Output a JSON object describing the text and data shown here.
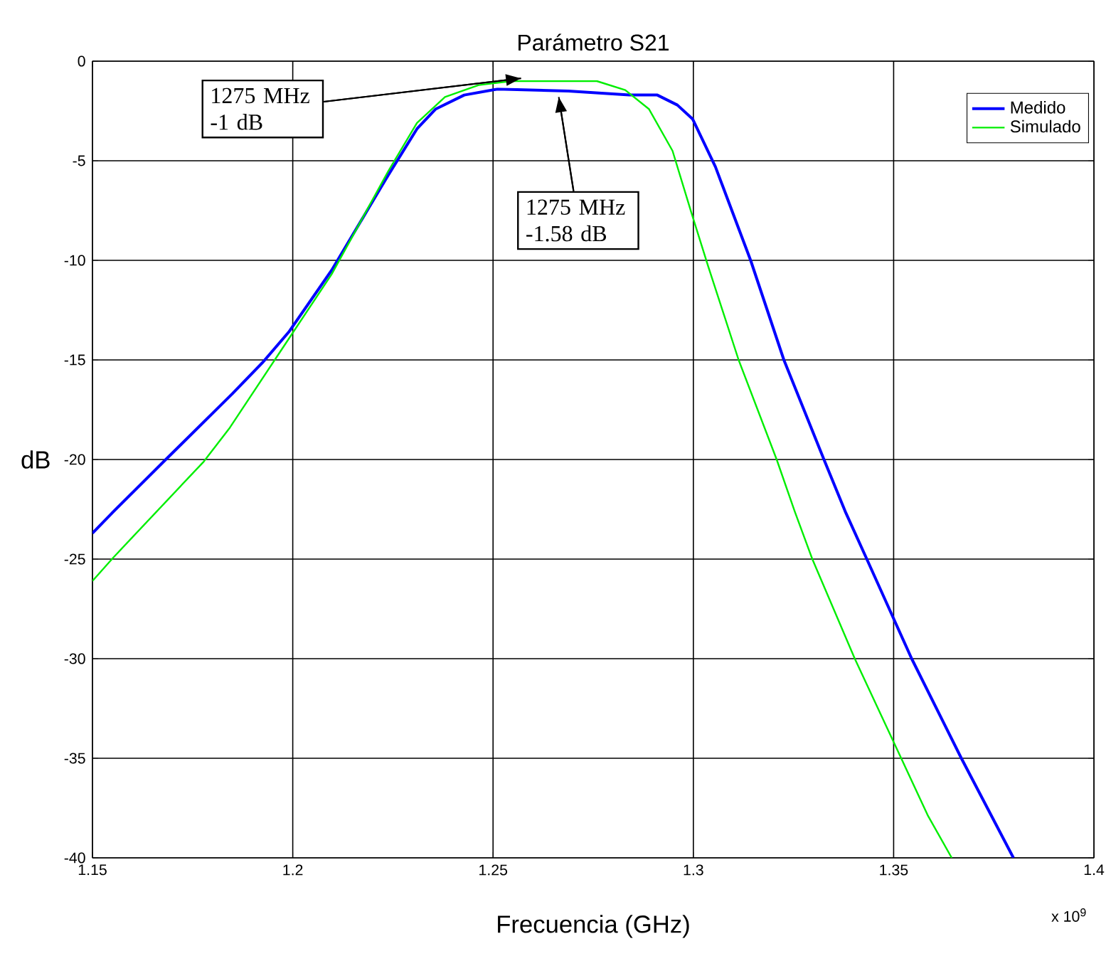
{
  "chart_data": {
    "type": "line",
    "title": "Parámetro S21",
    "xlabel": "Frecuencia (GHz)",
    "ylabel": "dB",
    "xlim": [
      1.15,
      1.4
    ],
    "ylim": [
      -40,
      0
    ],
    "xticks": [
      1.15,
      1.2,
      1.25,
      1.3,
      1.35,
      1.4
    ],
    "yticks": [
      -40,
      -35,
      -30,
      -25,
      -20,
      -15,
      -10,
      -5,
      0
    ],
    "grid": true,
    "legend": "top right",
    "line_style": "solid",
    "marker": "none",
    "series": [
      {
        "name": "Medido",
        "color": "#0000ff",
        "x": [
          1.15,
          1.1553,
          1.1683,
          1.1849,
          1.1926,
          1.199,
          1.2097,
          1.2168,
          1.2239,
          1.231,
          1.2357,
          1.2428,
          1.2511,
          1.2688,
          1.284,
          1.291,
          1.296,
          1.2998,
          1.3055,
          1.3143,
          1.3226,
          1.3326,
          1.3379,
          1.3433,
          1.3498,
          1.3545,
          1.3669,
          1.3799
        ],
        "values": [
          -23.7,
          -22.6,
          -20.0,
          -16.7,
          -15.1,
          -13.6,
          -10.5,
          -8.1,
          -5.7,
          -3.4,
          -2.4,
          -1.7,
          -1.4,
          -1.5,
          -1.7,
          -1.7,
          -2.2,
          -2.9,
          -5.3,
          -10.0,
          -15.0,
          -20.0,
          -22.6,
          -25.0,
          -27.9,
          -30.0,
          -35.0,
          -40.0
        ]
      },
      {
        "name": "Simulado",
        "color": "#00ee00",
        "x": [
          1.15,
          1.1553,
          1.1778,
          1.1843,
          1.1955,
          1.2097,
          1.2168,
          1.2239,
          1.231,
          1.238,
          1.2464,
          1.2546,
          1.2759,
          1.283,
          1.2889,
          1.2948,
          1.2995,
          1.3037,
          1.3113,
          1.3208,
          1.3253,
          1.3297,
          1.3403,
          1.3498,
          1.3586,
          1.3645
        ],
        "values": [
          -26.1,
          -24.9,
          -20.1,
          -18.4,
          -15.0,
          -10.7,
          -8.1,
          -5.5,
          -3.1,
          -1.8,
          -1.2,
          -1.0,
          -1.0,
          -1.45,
          -2.4,
          -4.5,
          -7.6,
          -10.3,
          -15.0,
          -20.0,
          -22.6,
          -25.0,
          -30.0,
          -34.1,
          -37.9,
          -40.0
        ]
      }
    ],
    "annotations": [
      {
        "text": "1275 MHz -1 dB",
        "x": 1.257,
        "y": -0.86
      },
      {
        "text": "1275 MHz -1.58 dB",
        "x": 1.2664,
        "y": -1.8
      },
      "x 10$^{9}$"
    ]
  }
}
